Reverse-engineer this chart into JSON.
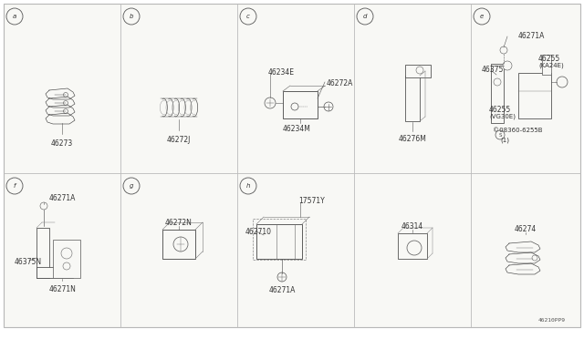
{
  "bg": "#f5f5f0",
  "fg": "#333333",
  "border": "#999999",
  "ncols": 5,
  "nrows": 2,
  "labels": {
    "0,0": "a",
    "1,0": "b",
    "2,0": "c",
    "3,0": "d",
    "4,0": "e",
    "0,1": "f",
    "1,1": "g",
    "2,1": "h"
  },
  "parts": {
    "a": {
      "name": "46273",
      "sketch": "insulator_stack"
    },
    "b": {
      "name": "46272J",
      "sketch": "coil_spring"
    },
    "c": {
      "name": "46272A",
      "parts": [
        "46234E",
        "46272A",
        "46234M"
      ],
      "sketch": "bracket_bolt"
    },
    "d": {
      "name": "46276M",
      "sketch": "bracket_d"
    },
    "e": {
      "name": "e_assembly",
      "parts": [
        "46271A",
        "46375",
        "46255_KA24E",
        "46255_VG30E",
        "08360-6255B"
      ],
      "sketch": "bracket_e"
    },
    "f": {
      "name": "f_assembly",
      "parts": [
        "46271A",
        "46375N",
        "46271N"
      ],
      "sketch": "bracket_f"
    },
    "g": {
      "name": "46272N",
      "sketch": "block_g"
    },
    "h": {
      "name": "h_assembly",
      "parts": [
        "17571Y",
        "462710",
        "46271A"
      ],
      "sketch": "bracket_h"
    },
    "i": {
      "name": "46314",
      "sketch": "block_i"
    },
    "j": {
      "name": "46274",
      "sketch": "insulator_stack2"
    }
  },
  "footer": "46210PP9",
  "lw_thin": 0.4,
  "lw_med": 0.7,
  "lw_thick": 1.0,
  "font_label": 5.5,
  "font_circle": 5.5,
  "font_footer": 4.5
}
